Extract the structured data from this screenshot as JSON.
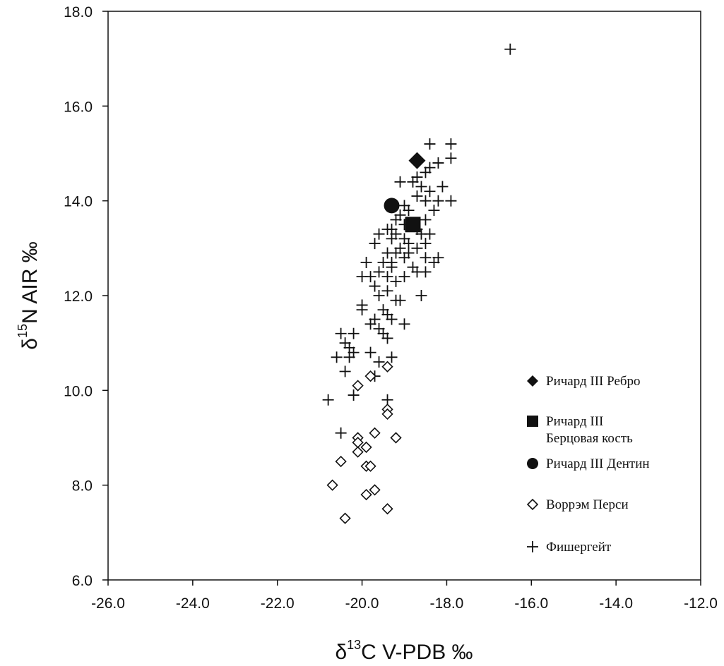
{
  "chart_data": {
    "type": "scatter",
    "title": "",
    "xlabel": {
      "base": "δ",
      "sup": "13",
      "rest": "C V-PDB ‰"
    },
    "ylabel": {
      "base": "δ",
      "sup": "15",
      "rest": "N AIR ‰"
    },
    "xlim": [
      -26,
      -12
    ],
    "ylim": [
      6,
      18
    ],
    "xticks": [
      -26,
      -24,
      -22,
      -20,
      -18,
      -16,
      -14,
      -12
    ],
    "yticks": [
      6,
      8,
      10,
      12,
      14,
      16,
      18
    ],
    "xtick_labels": [
      "-26.0",
      "-24.0",
      "-22.0",
      "-20.0",
      "-18.0",
      "-16.0",
      "-14.0",
      "-12.0"
    ],
    "ytick_labels": [
      "6.0",
      "8.0",
      "10.0",
      "12.0",
      "14.0",
      "16.0",
      "18.0"
    ],
    "grid": false,
    "legend_position": "right",
    "series": [
      {
        "name": "Ричард III Ребро",
        "marker": "filled-diamond",
        "color": "#111111",
        "points": [
          [
            -18.7,
            14.85
          ]
        ]
      },
      {
        "name": "Ричард III Берцовая кость",
        "legend_lines": [
          "Ричард III",
          "Берцовая кость"
        ],
        "marker": "filled-square",
        "color": "#111111",
        "points": [
          [
            -18.8,
            13.5
          ]
        ]
      },
      {
        "name": "Ричард III Дентин",
        "marker": "filled-circle",
        "color": "#111111",
        "points": [
          [
            -19.3,
            13.9
          ]
        ]
      },
      {
        "name": "Воррэм Перси",
        "marker": "open-diamond",
        "color": "#111111",
        "points": [
          [
            -20.1,
            10.1
          ],
          [
            -19.8,
            10.3
          ],
          [
            -19.4,
            10.5
          ],
          [
            -19.4,
            9.6
          ],
          [
            -19.4,
            9.5
          ],
          [
            -20.1,
            9.0
          ],
          [
            -20.1,
            8.9
          ],
          [
            -19.7,
            9.1
          ],
          [
            -19.9,
            8.8
          ],
          [
            -19.2,
            9.0
          ],
          [
            -20.1,
            8.7
          ],
          [
            -20.5,
            8.5
          ],
          [
            -19.9,
            8.4
          ],
          [
            -19.8,
            8.4
          ],
          [
            -20.7,
            8.0
          ],
          [
            -19.7,
            7.9
          ],
          [
            -19.9,
            7.8
          ],
          [
            -19.4,
            7.5
          ],
          [
            -20.4,
            7.3
          ]
        ]
      },
      {
        "name": "Фишергейт",
        "marker": "plus",
        "color": "#111111",
        "points": [
          [
            -16.5,
            17.2
          ],
          [
            -18.4,
            15.2
          ],
          [
            -17.9,
            15.2
          ],
          [
            -17.9,
            14.9
          ],
          [
            -18.2,
            14.8
          ],
          [
            -18.4,
            14.7
          ],
          [
            -18.5,
            14.6
          ],
          [
            -18.7,
            14.5
          ],
          [
            -18.8,
            14.4
          ],
          [
            -19.1,
            14.4
          ],
          [
            -18.6,
            14.3
          ],
          [
            -18.1,
            14.3
          ],
          [
            -18.4,
            14.2
          ],
          [
            -18.7,
            14.1
          ],
          [
            -18.2,
            14.0
          ],
          [
            -17.9,
            14.0
          ],
          [
            -18.5,
            14.0
          ],
          [
            -19.0,
            13.9
          ],
          [
            -18.9,
            13.8
          ],
          [
            -18.3,
            13.8
          ],
          [
            -19.1,
            13.7
          ],
          [
            -19.2,
            13.6
          ],
          [
            -18.5,
            13.6
          ],
          [
            -19.0,
            13.5
          ],
          [
            -19.3,
            13.4
          ],
          [
            -19.4,
            13.4
          ],
          [
            -18.7,
            13.4
          ],
          [
            -19.2,
            13.3
          ],
          [
            -19.6,
            13.3
          ],
          [
            -18.6,
            13.3
          ],
          [
            -18.4,
            13.3
          ],
          [
            -19.0,
            13.2
          ],
          [
            -19.3,
            13.2
          ],
          [
            -18.9,
            13.1
          ],
          [
            -19.7,
            13.1
          ],
          [
            -18.5,
            13.1
          ],
          [
            -19.1,
            13.0
          ],
          [
            -18.7,
            13.0
          ],
          [
            -19.4,
            12.9
          ],
          [
            -19.2,
            12.9
          ],
          [
            -18.9,
            12.9
          ],
          [
            -19.0,
            12.8
          ],
          [
            -18.5,
            12.8
          ],
          [
            -18.2,
            12.8
          ],
          [
            -19.3,
            12.7
          ],
          [
            -19.5,
            12.7
          ],
          [
            -19.9,
            12.7
          ],
          [
            -18.3,
            12.7
          ],
          [
            -18.8,
            12.6
          ],
          [
            -19.3,
            12.6
          ],
          [
            -19.6,
            12.5
          ],
          [
            -18.7,
            12.5
          ],
          [
            -18.5,
            12.5
          ],
          [
            -19.4,
            12.4
          ],
          [
            -19.8,
            12.4
          ],
          [
            -19.0,
            12.4
          ],
          [
            -20.0,
            12.4
          ],
          [
            -19.2,
            12.3
          ],
          [
            -19.7,
            12.2
          ],
          [
            -19.4,
            12.1
          ],
          [
            -19.6,
            12.0
          ],
          [
            -18.6,
            12.0
          ],
          [
            -19.2,
            11.9
          ],
          [
            -19.1,
            11.9
          ],
          [
            -20.0,
            11.8
          ],
          [
            -19.5,
            11.7
          ],
          [
            -20.0,
            11.7
          ],
          [
            -19.4,
            11.6
          ],
          [
            -19.7,
            11.5
          ],
          [
            -19.3,
            11.5
          ],
          [
            -19.8,
            11.4
          ],
          [
            -19.0,
            11.4
          ],
          [
            -19.6,
            11.3
          ],
          [
            -19.5,
            11.2
          ],
          [
            -20.5,
            11.2
          ],
          [
            -20.2,
            11.2
          ],
          [
            -19.4,
            11.1
          ],
          [
            -20.4,
            11.0
          ],
          [
            -20.3,
            10.9
          ],
          [
            -20.2,
            10.8
          ],
          [
            -19.8,
            10.8
          ],
          [
            -20.6,
            10.7
          ],
          [
            -20.3,
            10.7
          ],
          [
            -19.3,
            10.7
          ],
          [
            -19.6,
            10.6
          ],
          [
            -20.4,
            10.4
          ],
          [
            -19.7,
            10.3
          ],
          [
            -20.2,
            9.9
          ],
          [
            -20.8,
            9.8
          ],
          [
            -19.4,
            9.8
          ],
          [
            -20.5,
            9.1
          ]
        ]
      }
    ]
  }
}
